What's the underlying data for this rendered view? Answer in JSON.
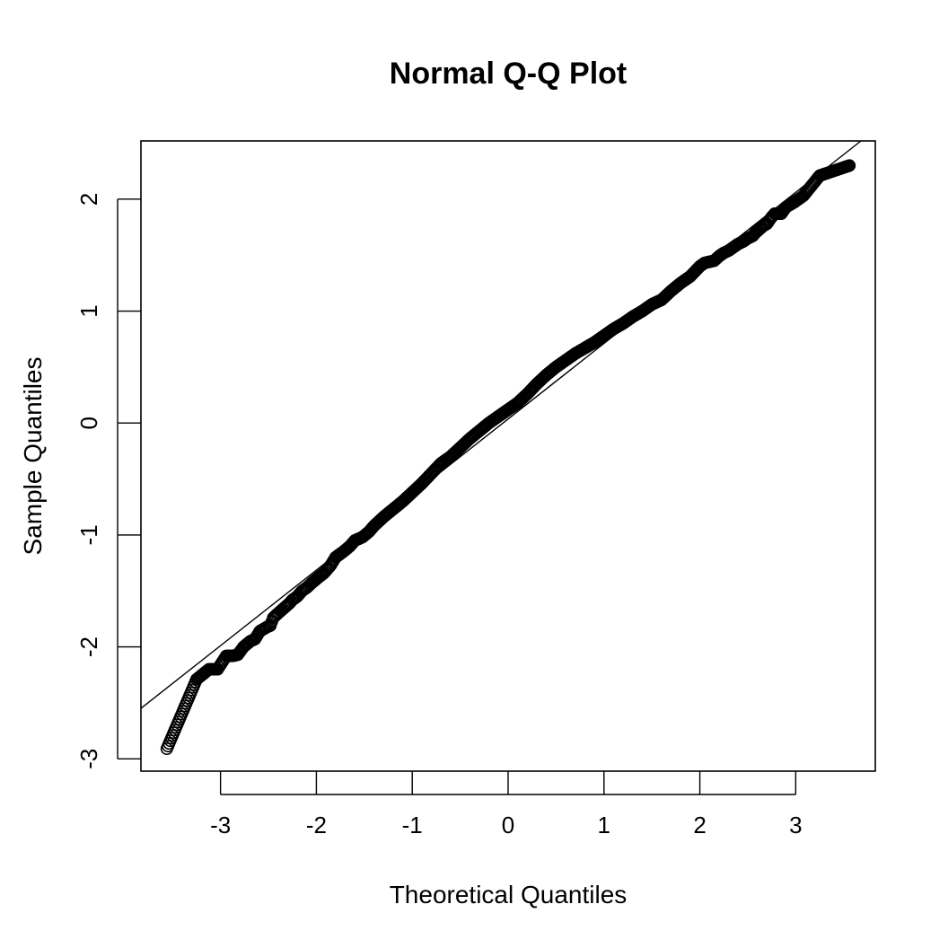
{
  "chart_data": {
    "type": "scatter",
    "title": "Normal Q-Q Plot",
    "xlabel": "Theoretical Quantiles",
    "ylabel": "Sample Quantiles",
    "xlim": [
      -3.83,
      3.83
    ],
    "ylim": [
      -3.11,
      2.52
    ],
    "x_ticks": [
      -3,
      -2,
      -1,
      0,
      1,
      2,
      3
    ],
    "y_ticks": [
      -3,
      -2,
      -1,
      0,
      1,
      2
    ],
    "x_tick_labels": [
      "-3",
      "-2",
      "-1",
      "0",
      "1",
      "2",
      "3"
    ],
    "y_tick_labels": [
      "-3",
      "-2",
      "-1",
      "0",
      "1",
      "2"
    ],
    "reference_line": {
      "intercept": 0.036,
      "slope": 0.675
    },
    "grid": false,
    "marker": "open-circle",
    "n_points": 1000,
    "points": {
      "x": [
        -3.56,
        -3.25,
        -3.12,
        -3.03,
        -2.94,
        -2.87,
        -2.82,
        -2.76,
        -2.69,
        -2.64,
        -2.59,
        -2.55,
        -2.51,
        -2.48,
        -2.45,
        -2.4,
        -2.36,
        -2.32,
        -2.28,
        -2.25,
        -2.2,
        -2.15,
        -2.1,
        -2.05,
        -1.98,
        -1.92,
        -1.85,
        -1.8,
        -1.72,
        -1.65,
        -1.6,
        -1.52,
        -1.45,
        -1.4,
        -1.3,
        -1.2,
        -1.1,
        -1.0,
        -0.9,
        -0.8,
        -0.7,
        -0.6,
        -0.5,
        -0.4,
        -0.3,
        -0.2,
        -0.1,
        0.0,
        0.1,
        0.2,
        0.3,
        0.4,
        0.5,
        0.6,
        0.7,
        0.8,
        0.9,
        1.0,
        1.1,
        1.2,
        1.3,
        1.4,
        1.5,
        1.6,
        1.7,
        1.8,
        1.9,
        2.0,
        2.05,
        2.1,
        2.15,
        2.2,
        2.25,
        2.3,
        2.35,
        2.4,
        2.45,
        2.5,
        2.55,
        2.58,
        2.62,
        2.66,
        2.7,
        2.74,
        2.78,
        2.85,
        2.9,
        2.98,
        3.08,
        3.25,
        3.56
      ],
      "y": [
        -2.91,
        -2.29,
        -2.2,
        -2.2,
        -2.08,
        -2.08,
        -2.07,
        -2.0,
        -1.95,
        -1.93,
        -1.86,
        -1.84,
        -1.82,
        -1.81,
        -1.74,
        -1.7,
        -1.67,
        -1.64,
        -1.61,
        -1.58,
        -1.55,
        -1.5,
        -1.47,
        -1.43,
        -1.38,
        -1.34,
        -1.27,
        -1.2,
        -1.15,
        -1.1,
        -1.05,
        -1.02,
        -0.97,
        -0.92,
        -0.84,
        -0.77,
        -0.7,
        -0.62,
        -0.54,
        -0.45,
        -0.36,
        -0.3,
        -0.22,
        -0.14,
        -0.07,
        0.0,
        0.06,
        0.12,
        0.18,
        0.26,
        0.35,
        0.43,
        0.5,
        0.56,
        0.62,
        0.67,
        0.72,
        0.78,
        0.84,
        0.89,
        0.95,
        1.0,
        1.06,
        1.1,
        1.18,
        1.25,
        1.31,
        1.4,
        1.43,
        1.44,
        1.45,
        1.49,
        1.52,
        1.54,
        1.57,
        1.6,
        1.62,
        1.65,
        1.67,
        1.7,
        1.73,
        1.76,
        1.78,
        1.83,
        1.87,
        1.87,
        1.93,
        1.97,
        2.03,
        2.21,
        2.3
      ]
    }
  }
}
